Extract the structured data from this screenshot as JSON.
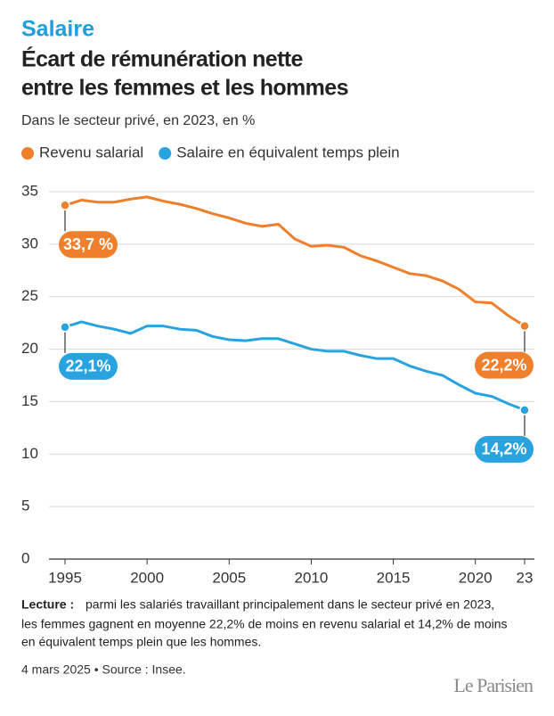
{
  "chart_data": {
    "type": "line",
    "kicker": "Salaire",
    "title": [
      "Écart de rémunération nette",
      "entre les femmes et les hommes"
    ],
    "subtitle": "Dans le secteur privé, en 2023, en %",
    "x": [
      1995,
      1996,
      1997,
      1998,
      1999,
      2000,
      2001,
      2002,
      2003,
      2004,
      2005,
      2006,
      2007,
      2008,
      2009,
      2010,
      2011,
      2012,
      2013,
      2014,
      2015,
      2016,
      2017,
      2018,
      2019,
      2020,
      2021,
      2022,
      2023
    ],
    "series": [
      {
        "name": "Revenu salarial",
        "color": "#f07f2c",
        "values": [
          33.7,
          34.2,
          34.0,
          34.0,
          34.3,
          34.5,
          34.1,
          33.8,
          33.4,
          32.9,
          32.5,
          32.0,
          31.7,
          31.9,
          30.5,
          29.8,
          29.9,
          29.7,
          28.9,
          28.4,
          27.8,
          27.2,
          27.0,
          26.5,
          25.7,
          24.5,
          24.4,
          23.2,
          22.2
        ],
        "value_labels": [
          "33,7 %",
          null,
          null,
          null,
          null,
          null,
          null,
          null,
          null,
          null,
          null,
          null,
          null,
          null,
          null,
          null,
          null,
          null,
          null,
          null,
          null,
          null,
          null,
          null,
          null,
          null,
          null,
          null,
          "22,2%"
        ]
      },
      {
        "name": "Salaire en équivalent temps plein",
        "color": "#29a3e0",
        "values": [
          22.1,
          22.6,
          22.2,
          21.9,
          21.5,
          22.2,
          22.2,
          21.9,
          21.8,
          21.2,
          20.9,
          20.8,
          21.0,
          21.0,
          20.5,
          20.0,
          19.8,
          19.8,
          19.4,
          19.1,
          19.1,
          18.4,
          17.9,
          17.5,
          16.6,
          15.8,
          15.5,
          14.8,
          14.2
        ],
        "value_labels": [
          "22,1%",
          null,
          null,
          null,
          null,
          null,
          null,
          null,
          null,
          null,
          null,
          null,
          null,
          null,
          null,
          null,
          null,
          null,
          null,
          null,
          null,
          null,
          null,
          null,
          null,
          null,
          null,
          null,
          "14,2%"
        ]
      }
    ],
    "xlim": [
      1995,
      2023
    ],
    "xticks": [
      1995,
      2000,
      2005,
      2010,
      2015,
      2020,
      {
        "value": 2023,
        "label": "23"
      }
    ],
    "ylim": [
      0,
      35
    ],
    "yticks": [
      0,
      5,
      10,
      15,
      20,
      25,
      30,
      35
    ],
    "grid": true,
    "legend": "top",
    "note": {
      "label": "Lecture :",
      "lines": [
        "parmi les salariés travaillant principalement dans le secteur privé en 2023,",
        "les femmes gagnent en moyenne 22,2% de moins en revenu salarial et 14,2% de moins",
        "en équivalent temps plein que les hommes."
      ]
    },
    "source": "4 mars 2025 • Source : Insee.",
    "logo": "Le Parisien"
  }
}
